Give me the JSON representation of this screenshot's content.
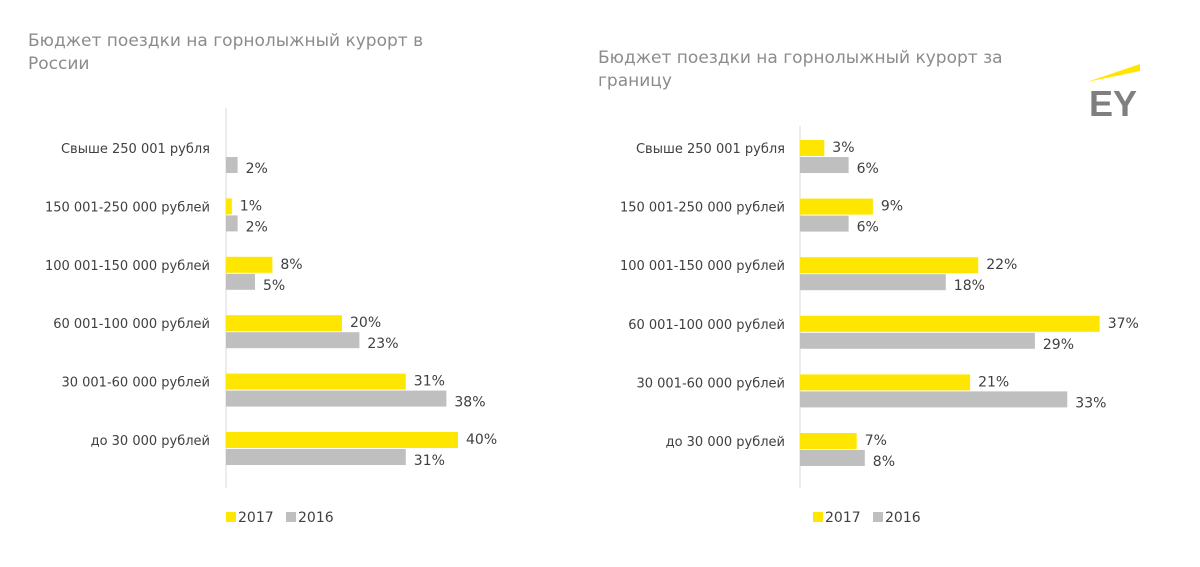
{
  "colors": {
    "series_2017": "#ffe600",
    "series_2016": "#bfbfbf",
    "title": "#8c8c8c",
    "text": "#404040",
    "axis": "#d9d9d9",
    "logo": "#7f7f7f"
  },
  "logo": {
    "text": "EY",
    "icon": "ey-logo-icon"
  },
  "chart_data": [
    {
      "type": "bar",
      "orientation": "horizontal",
      "title": "Бюджет поездки на горнолыжный курорт в России",
      "title_lines": [
        "Бюджет поездки на горнолыжный курорт в",
        "России"
      ],
      "categories": [
        "Свыше 250 001 рубля",
        "150 001-250 000 рублей",
        "100 001-150 000 рублей",
        "60 001-100 000 рублей",
        "30 001-60 000 рублей",
        "до 30 000 рублей"
      ],
      "series": [
        {
          "name": "2017",
          "values": [
            null,
            1,
            8,
            20,
            31,
            40
          ],
          "labels": [
            "",
            "1%",
            "8%",
            "20%",
            "31%",
            "40%"
          ]
        },
        {
          "name": "2016",
          "values": [
            2,
            2,
            5,
            23,
            38,
            31
          ],
          "labels": [
            "2%",
            "2%",
            "5%",
            "23%",
            "38%",
            "31%"
          ]
        }
      ],
      "unit": "%",
      "legend": [
        "2017",
        "2016"
      ],
      "legend_position": "bottom",
      "grid": false
    },
    {
      "type": "bar",
      "orientation": "horizontal",
      "title": "Бюджет поездки на горнолыжный курорт за границу",
      "title_lines": [
        "Бюджет поездки на горнолыжный курорт за",
        "границу"
      ],
      "categories": [
        "Свыше 250 001 рубля",
        "150 001-250 000 рублей",
        "100 001-150 000 рублей",
        "60 001-100 000 рублей",
        "30 001-60 000 рублей",
        "до 30 000 рублей"
      ],
      "series": [
        {
          "name": "2017",
          "values": [
            3,
            9,
            22,
            37,
            21,
            7
          ],
          "labels": [
            "3%",
            "9%",
            "22%",
            "37%",
            "21%",
            "7%"
          ]
        },
        {
          "name": "2016",
          "values": [
            6,
            6,
            18,
            29,
            33,
            8
          ],
          "labels": [
            "6%",
            "6%",
            "18%",
            "29%",
            "33%",
            "8%"
          ]
        }
      ],
      "unit": "%",
      "legend": [
        "2017",
        "2016"
      ],
      "legend_position": "bottom",
      "grid": false
    }
  ]
}
